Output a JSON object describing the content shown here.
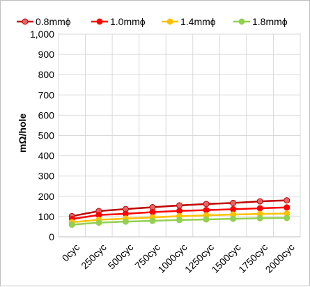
{
  "chart_data": {
    "type": "line",
    "title": "",
    "xlabel": "",
    "ylabel": "mΩ/hole",
    "ylim": [
      0,
      1000
    ],
    "y_ticks": [
      "0",
      "100",
      "200",
      "300",
      "400",
      "500",
      "600",
      "700",
      "800",
      "900",
      "1,000"
    ],
    "categories": [
      "0cyc",
      "250cyc",
      "500cyc",
      "750cyc",
      "1000cyc",
      "1250cyc",
      "1500cyc",
      "1750cyc",
      "2000cyc"
    ],
    "grid": true,
    "legend_position": "top",
    "series": [
      {
        "name": "0.8mmϕ",
        "color": "#c00000",
        "marker_fill": "#e06666",
        "values": [
          102,
          127,
          137,
          146,
          155,
          162,
          167,
          175,
          180
        ]
      },
      {
        "name": "1.0mmϕ",
        "color": "#ff0000",
        "marker_fill": "#ff0000",
        "values": [
          88,
          108,
          114,
          122,
          128,
          132,
          136,
          141,
          145
        ]
      },
      {
        "name": "1.4mmϕ",
        "color": "#ffc000",
        "marker_fill": "#ffc000",
        "values": [
          72,
          84,
          90,
          96,
          102,
          106,
          110,
          113,
          115
        ]
      },
      {
        "name": "1.8mmϕ",
        "color": "#92d050",
        "marker_fill": "#92d050",
        "values": [
          60,
          70,
          75,
          79,
          83,
          86,
          89,
          92,
          93
        ]
      }
    ]
  }
}
